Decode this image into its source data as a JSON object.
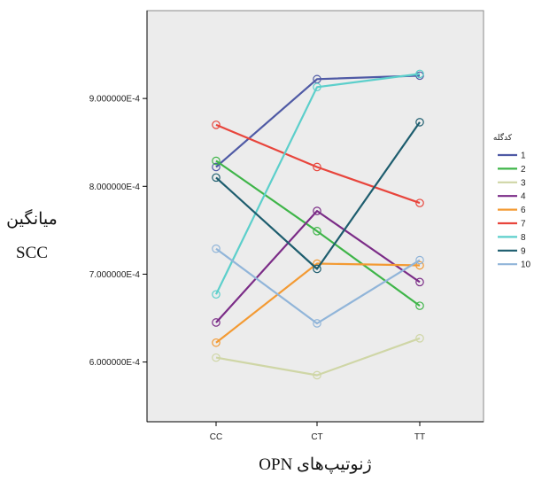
{
  "chart_data": {
    "type": "line",
    "categories": [
      "CC",
      "CT",
      "TT"
    ],
    "xlabel": "ژنوتیپ‌های OPN",
    "ylabel_lines": [
      "میانگین",
      "SCC"
    ],
    "ylim": [
      0.000532,
      0.001
    ],
    "yticks": [
      0.0006,
      0.0007,
      0.0008,
      0.0009
    ],
    "ytick_labels": [
      "6.000000E-4",
      "7.000000E-4",
      "8.000000E-4",
      "9.000000E-4"
    ],
    "grid": false,
    "legend": {
      "title": "کدگله",
      "placement": "right"
    },
    "series": [
      {
        "name": "1",
        "color": "#4f5aa5",
        "values": [
          0.000822,
          0.000922,
          0.000926
        ]
      },
      {
        "name": "2",
        "color": "#3fb549",
        "values": [
          0.000829,
          0.000749,
          0.000664
        ]
      },
      {
        "name": "3",
        "color": "#cfd6a6",
        "values": [
          0.000605,
          0.000585,
          0.000627
        ]
      },
      {
        "name": "4",
        "color": "#7b2c87",
        "values": [
          0.000645,
          0.000772,
          0.000691
        ]
      },
      {
        "name": "6",
        "color": "#f39a33",
        "values": [
          0.000622,
          0.000712,
          0.00071
        ]
      },
      {
        "name": "7",
        "color": "#e8453c",
        "values": [
          0.00087,
          0.000822,
          0.000781
        ]
      },
      {
        "name": "8",
        "color": "#5ccfcb",
        "values": [
          0.000677,
          0.000913,
          0.000928
        ]
      },
      {
        "name": "9",
        "color": "#1d5d6e",
        "values": [
          0.00081,
          0.000706,
          0.000873
        ]
      },
      {
        "name": "10",
        "color": "#91b5d9",
        "values": [
          0.000729,
          0.000644,
          0.000716
        ]
      }
    ]
  }
}
